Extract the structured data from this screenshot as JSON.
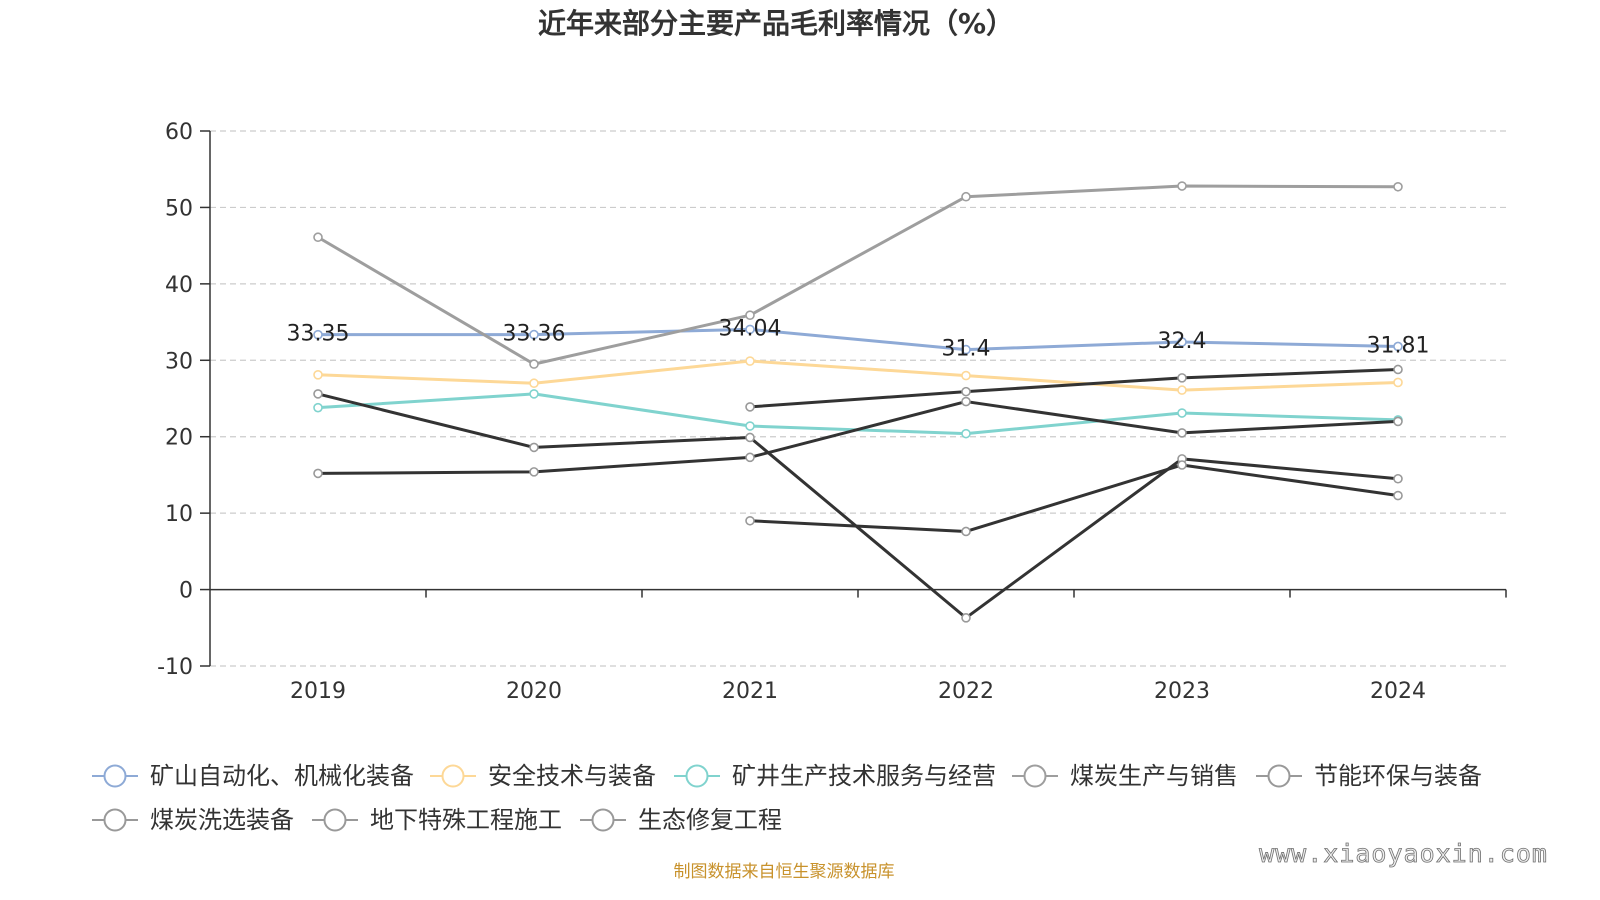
{
  "footer": "制图数据来自恒生聚源数据库",
  "watermark": "www.xiaoyaoxin.com",
  "chart_data": {
    "type": "line",
    "title": "近年来部分主要产品毛利率情况（%）",
    "xlabel": "",
    "ylabel": "",
    "categories": [
      "2019",
      "2020",
      "2021",
      "2022",
      "2023",
      "2024"
    ],
    "ylim": [
      -10,
      60
    ],
    "yticks": [
      -10,
      0,
      10,
      20,
      30,
      40,
      50,
      60
    ],
    "grid": true,
    "legend_position": "bottom",
    "series": [
      {
        "name": "矿山自动化、机械化装备",
        "color": "#8eaad6",
        "line_color": "#8eaad6",
        "labels": true,
        "values": [
          33.35,
          33.36,
          34.04,
          31.4,
          32.4,
          31.81
        ]
      },
      {
        "name": "安全技术与装备",
        "color": "#fdd897",
        "line_color": "#fdd897",
        "labels": false,
        "values": [
          28.1,
          27.0,
          29.9,
          28.0,
          26.1,
          27.1
        ]
      },
      {
        "name": "矿井生产技术服务与经营",
        "color": "#80d3ce",
        "line_color": "#80d3ce",
        "labels": false,
        "values": [
          23.8,
          25.6,
          21.4,
          20.4,
          23.1,
          22.2
        ]
      },
      {
        "name": "煤炭生产与销售",
        "color": "#9e9e9e",
        "line_color": "#9e9e9e",
        "labels": false,
        "values": [
          46.1,
          29.5,
          35.9,
          51.4,
          52.8,
          52.7
        ]
      },
      {
        "name": "节能环保与装备",
        "color": "#999999",
        "line_color": "#333333",
        "labels": false,
        "values": [
          15.2,
          15.4,
          17.3,
          24.6,
          20.5,
          22.0
        ]
      },
      {
        "name": "煤炭洗选装备",
        "color": "#999999",
        "line_color": "#333333",
        "labels": false,
        "values": [
          25.6,
          18.6,
          19.9,
          -3.7,
          17.1,
          14.5
        ]
      },
      {
        "name": "地下特殊工程施工",
        "color": "#999999",
        "line_color": "#333333",
        "labels": false,
        "values": [
          null,
          null,
          23.9,
          25.9,
          27.7,
          28.8
        ]
      },
      {
        "name": "生态修复工程",
        "color": "#999999",
        "line_color": "#333333",
        "labels": false,
        "values": [
          null,
          null,
          9.0,
          7.6,
          16.3,
          12.3
        ]
      }
    ]
  }
}
